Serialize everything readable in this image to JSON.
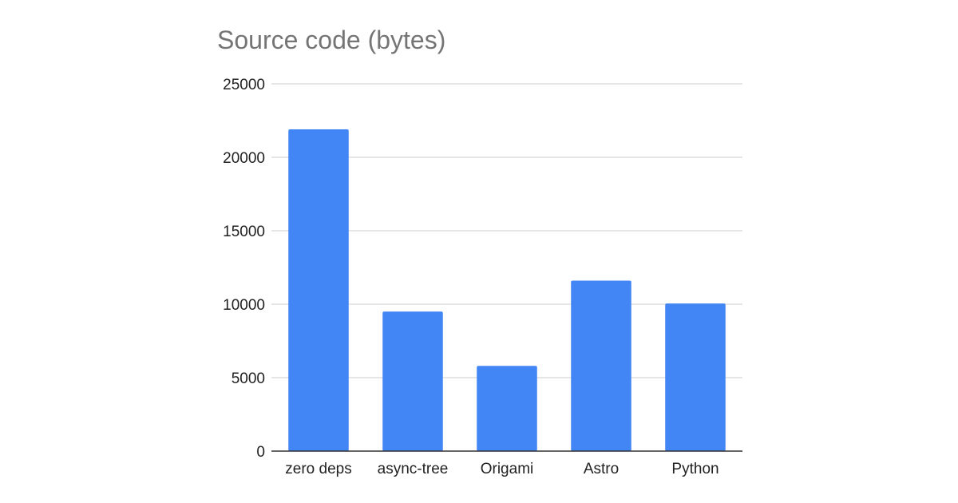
{
  "chart_data": {
    "type": "bar",
    "title": "Source code (bytes)",
    "categories": [
      "zero deps",
      "async-tree",
      "Origami",
      "Astro",
      "Python"
    ],
    "values": [
      21900,
      9500,
      5800,
      11600,
      10050
    ],
    "ylim": [
      0,
      25000
    ],
    "yticks": [
      0,
      5000,
      10000,
      15000,
      20000,
      25000
    ],
    "grid": true,
    "bar_color": "#4285f4",
    "grid_color": "#cccccc",
    "axis_color": "#333333"
  }
}
